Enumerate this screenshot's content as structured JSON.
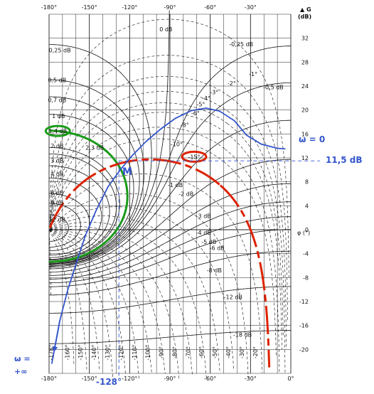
{
  "chart_data": {
    "type": "line",
    "chart_kind": "Black-Nichols chart",
    "x_axis": {
      "label": "φ (°)",
      "range": [
        -180,
        0
      ],
      "tick_labels_top": [
        "-180°",
        "-150°",
        "-120°",
        "-90°",
        "-60°",
        "-30°"
      ],
      "tick_labels_bottom": [
        "-180°",
        "-150°",
        "-120°",
        "-90°",
        "-60°",
        "-30°",
        "0°"
      ]
    },
    "y_axis": {
      "label": "G (dB)",
      "range": [
        -24,
        36
      ],
      "tick_labels": [
        "32",
        "28",
        "24",
        "20",
        "16",
        "12",
        "8",
        "4",
        "0",
        "-4",
        "-8",
        "-12",
        "-16",
        "-20"
      ]
    },
    "grid": true,
    "magnitude_contours_db": [
      "0 dB",
      "0,25 dB",
      "0,5 dB",
      "0,7 dB",
      "1 dB",
      "1,4 dB",
      "2 dB",
      "2,3 dB",
      "3 dB",
      "4 dB",
      "6 dB",
      "8 dB",
      "12 dB",
      "-0,25 dB",
      "-0,5 dB",
      "-1 dB",
      "-2 dB",
      "-3 dB",
      "-4 dB",
      "-5 dB",
      "-6 dB",
      "-8 dB",
      "-12 dB",
      "-18 dB"
    ],
    "phase_contours_labels_top": [
      "-1°",
      "-2°",
      "-3°",
      "-4°",
      "-5°",
      "-6°",
      "-8°",
      "-10°",
      "-15°"
    ],
    "phase_contours_labels_bottom": [
      "-178°",
      "-160°",
      "-150°",
      "-140°",
      "-130°",
      "-120°",
      "-110°",
      "-100°",
      "-90°",
      "-80°",
      "-70°",
      "-60°",
      "-50°",
      "-40°",
      "-30°",
      "-20°"
    ],
    "series": [
      {
        "name": "",
        "color": "#3355cc",
        "points": [
          [
            -4,
            13.5
          ],
          [
            -10,
            13.6
          ],
          [
            -22,
            14.3
          ],
          [
            -33,
            15.8
          ],
          [
            -42,
            18.2
          ],
          [
            -53,
            19.8
          ],
          [
            -63,
            20.3
          ],
          [
            -74,
            19.9
          ],
          [
            -86,
            18.6
          ],
          [
            -97,
            16.8
          ],
          [
            -108,
            14.7
          ],
          [
            -118,
            12.4
          ],
          [
            -127,
            10.0
          ],
          [
            -136,
            7.2
          ],
          [
            -145,
            3.2
          ],
          [
            -153,
            -1.0
          ],
          [
            -160,
            -5.8
          ],
          [
            -166,
            -10.0
          ],
          [
            -172,
            -15.2
          ],
          [
            -176,
            -20.0
          ],
          [
            -178,
            -22.4
          ]
        ]
      }
    ],
    "highlighted_contours": [
      {
        "label": "1,4 dB",
        "color": "#1a9a1a"
      },
      {
        "label": "-15°",
        "color": "#dd2200"
      }
    ],
    "annotations": {
      "omega_zero": "ω = 0",
      "omega_inf_line1": "ω =",
      "omega_inf_line2": "+∞",
      "gain_value": "11,5 dB",
      "phase_value": "-128°",
      "point_label": "M"
    },
    "colors": {
      "nyquist": "#3355cc",
      "mag_contour_highlight": "#1a9a1a",
      "phase_contour_highlight": "#dd2200",
      "grid": "#222222"
    }
  }
}
